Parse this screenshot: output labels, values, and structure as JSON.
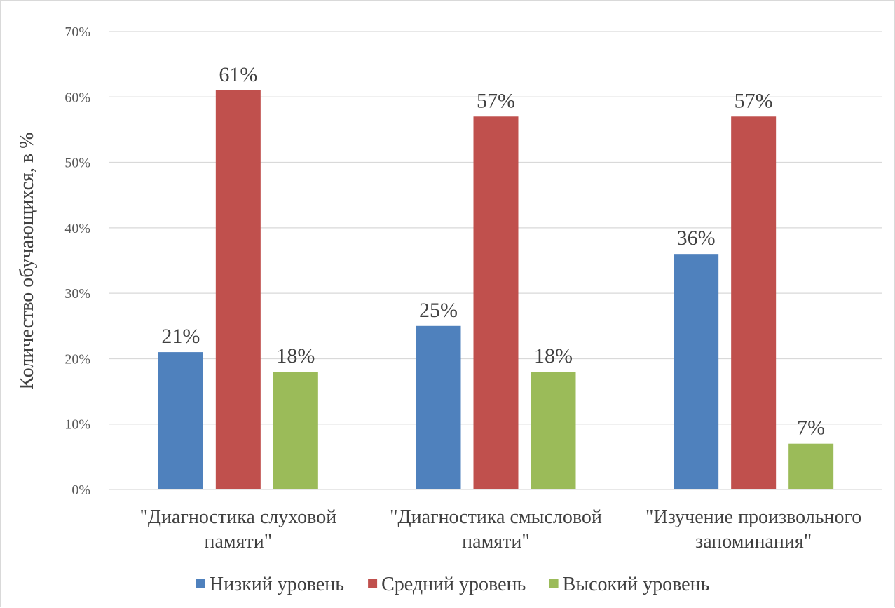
{
  "chart_data": {
    "type": "bar",
    "title": "",
    "xlabel": "",
    "ylabel": "Количество обучающихся, в %",
    "ylim": [
      0,
      70
    ],
    "yticks": [
      0,
      10,
      20,
      30,
      40,
      50,
      60,
      70
    ],
    "ytick_labels": [
      "0%",
      "10%",
      "20%",
      "30%",
      "40%",
      "50%",
      "60%",
      "70%"
    ],
    "grid": true,
    "legend_position": "bottom",
    "categories": [
      [
        "\"Диагностика слуховой",
        "памяти\""
      ],
      [
        "\"Диагностика смысловой",
        "памяти\""
      ],
      [
        "\"Изучение произвольного",
        "запоминания\""
      ]
    ],
    "series": [
      {
        "name": "Низкий уровень",
        "color": "#4F81BD",
        "values": [
          21,
          25,
          36
        ],
        "labels": [
          "21%",
          "25%",
          "36%"
        ]
      },
      {
        "name": "Средний уровень",
        "color": "#C0504D",
        "values": [
          61,
          57,
          57
        ],
        "labels": [
          "61%",
          "57%",
          "57%"
        ]
      },
      {
        "name": "Высокий уровень",
        "color": "#9BBB59",
        "values": [
          18,
          18,
          7
        ],
        "labels": [
          "18%",
          "18%",
          "7%"
        ]
      }
    ]
  }
}
